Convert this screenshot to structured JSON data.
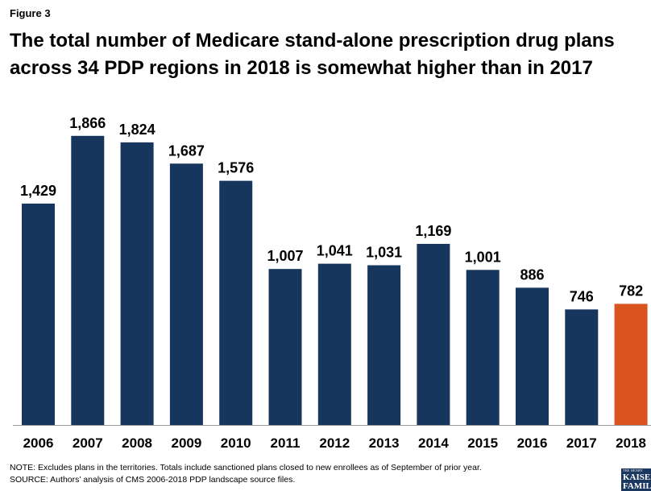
{
  "figure_label": "Figure 3",
  "title": "The total number of Medicare stand-alone prescription drug plans across 34 PDP regions in 2018 is somewhat higher than in 2017",
  "note": "NOTE: Excludes plans in the territories. Totals include sanctioned plans closed to new enrollees as of September of prior year.",
  "source": "SOURCE: Authors’ analysis of CMS 2006-2018 PDP landscape source files.",
  "logo": {
    "small": "THE HENRY",
    "line1": "KAISER",
    "line2": "FAMILY",
    "line3": "FOUNDATION"
  },
  "colors": {
    "bar": "#17365d",
    "highlight": "#d9541e",
    "axis": "#9a9a9a"
  },
  "chart_data": {
    "type": "bar",
    "categories": [
      "2006",
      "2007",
      "2008",
      "2009",
      "2010",
      "2011",
      "2012",
      "2013",
      "2014",
      "2015",
      "2016",
      "2017",
      "2018"
    ],
    "values": [
      1429,
      1866,
      1824,
      1687,
      1576,
      1007,
      1041,
      1031,
      1169,
      1001,
      886,
      746,
      782
    ],
    "value_labels": [
      "1,429",
      "1,866",
      "1,824",
      "1,687",
      "1,576",
      "1,007",
      "1,041",
      "1,031",
      "1,169",
      "1,001",
      "886",
      "746",
      "782"
    ],
    "highlight_index": 12,
    "ylim": [
      0,
      2000
    ],
    "grid": false,
    "title": "",
    "xlabel": "",
    "ylabel": ""
  }
}
